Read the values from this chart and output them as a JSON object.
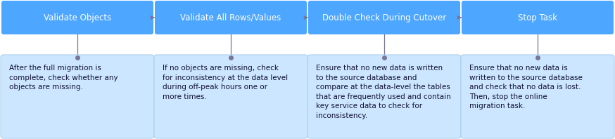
{
  "background_color": "#ffffff",
  "box_bg_color": "#4da6ff",
  "desc_box_bg_color": "#cce6ff",
  "desc_box_border_color": "#aacfee",
  "title_text_color": "#ffffff",
  "desc_text_color": "#111133",
  "arrow_color": "#777799",
  "dot_color": "#777799",
  "steps": [
    {
      "title": "Validate Objects",
      "desc": "After the full migration is\ncomplete, check whether any\nobjects are missing."
    },
    {
      "title": "Validate All Rows/Values",
      "desc": "If no objects are missing, check\nfor inconsistency at the data level\nduring off-peak hours one or\nmore times."
    },
    {
      "title": "Double Check During Cutover",
      "desc": "Ensure that no new data is written\nto the source database and\ncompare at the data-level the tables\nthat are frequently used and contain\nkey service data to check for\ninconsistency."
    },
    {
      "title": "Stop Task",
      "desc": "Ensure that no new data is\nwritten to the source database\nand check that no data is lost.\nThen, stop the online\nmigration task."
    }
  ],
  "fig_width": 8.74,
  "fig_height": 1.98,
  "dpi": 100,
  "title_fontsize": 8.5,
  "desc_fontsize": 7.5
}
